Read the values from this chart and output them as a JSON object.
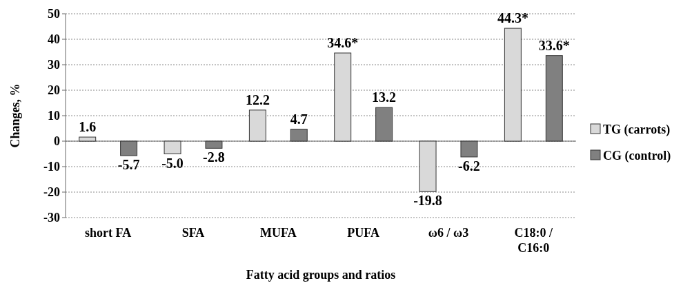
{
  "chart_data": {
    "type": "bar",
    "xlabel": "Fatty acid groups and ratios",
    "ylabel": "Changes, %",
    "categories": [
      "short FA",
      "SFA",
      "MUFA",
      "PUFA",
      "ω6 / ω3",
      "C18:0 / C16:0"
    ],
    "series": [
      {
        "name": "TG (carrots)",
        "color": "#d9d9d9",
        "values": [
          1.6,
          -5.0,
          12.2,
          34.6,
          -19.8,
          44.3
        ],
        "value_labels": [
          "1.6",
          "-5.0",
          "12.2",
          "34.6*",
          "-19.8",
          "44.3*"
        ]
      },
      {
        "name": "CG (control)",
        "color": "#808080",
        "values": [
          -5.7,
          -2.8,
          4.7,
          13.2,
          -6.2,
          33.6
        ],
        "value_labels": [
          "-5.7",
          "-2.8",
          "4.7",
          "13.2",
          "-6.2",
          "33.6*"
        ]
      }
    ],
    "ylim": [
      -30,
      50
    ],
    "yticks": [
      -30,
      -20,
      -10,
      0,
      10,
      20,
      30,
      40,
      50
    ],
    "grid": "y",
    "legend": "right"
  }
}
